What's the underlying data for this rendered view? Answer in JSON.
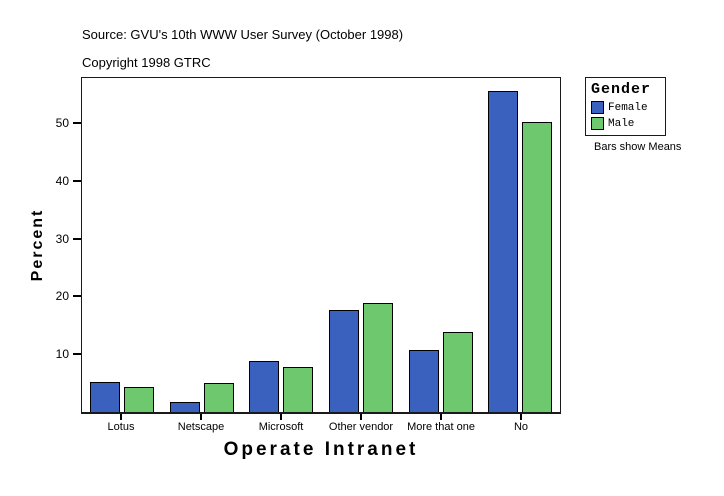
{
  "chart_data": {
    "type": "bar",
    "source": "Source: GVU's 10th WWW User Survey (October 1998)",
    "copyright": "Copyright 1998 GTRC",
    "categories": [
      "Lotus",
      "Netscape",
      "Microsoft",
      "Other vendor",
      "More that one",
      "No"
    ],
    "series": [
      {
        "name": "Female",
        "color": "#3A61BE",
        "values": [
          5.2,
          1.8,
          8.8,
          17.8,
          10.7,
          55.8
        ]
      },
      {
        "name": "Male",
        "color": "#6EC96E",
        "values": [
          4.4,
          5.1,
          7.8,
          19.0,
          13.9,
          50.3
        ]
      }
    ],
    "xlabel": "Operate Intranet",
    "ylabel": "Percent",
    "yticks": [
      10,
      20,
      30,
      40,
      50
    ],
    "ylim": [
      0,
      58
    ],
    "grid": false,
    "legend": {
      "title": "Gender",
      "position": "top-right",
      "note": "Bars show Means"
    }
  }
}
